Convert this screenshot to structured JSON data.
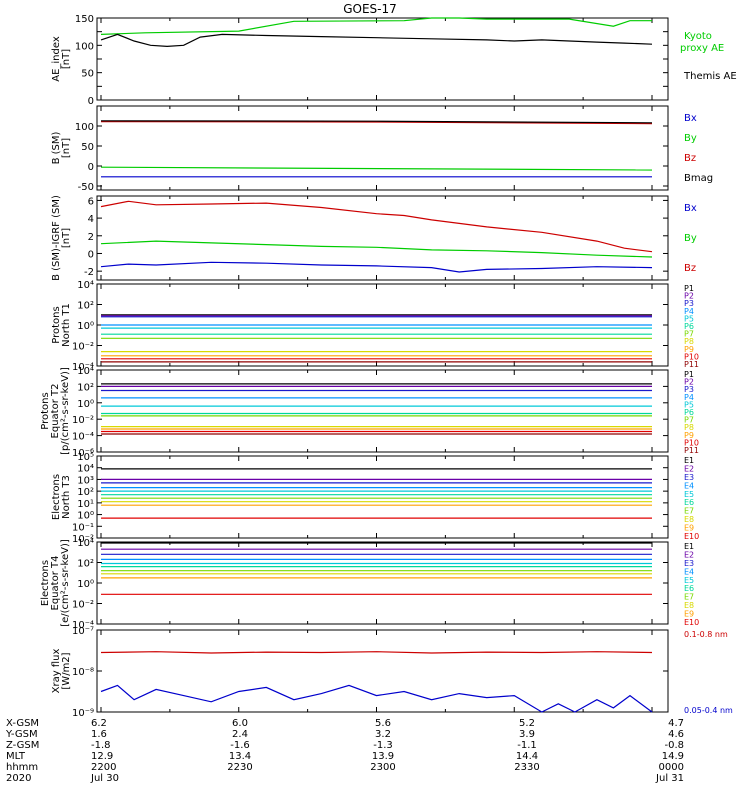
{
  "title": "GOES-17",
  "chart_data": [
    {
      "id": "ae",
      "type": "line",
      "ylabel": [
        "AE_index",
        "[nT]"
      ],
      "ylim": [
        0,
        150
      ],
      "log": false,
      "ticks": [
        "0",
        "50",
        "100",
        "150"
      ],
      "tick_values": [
        0,
        25,
        50,
        75,
        100,
        125,
        150
      ],
      "tick_labels": [
        "0",
        "",
        "50",
        "",
        "100",
        "",
        "150"
      ],
      "series": [
        {
          "name": "Kyoto",
          "name2": "proxy AE",
          "color": "#00cc00",
          "x": [
            0,
            0.08,
            0.25,
            0.35,
            0.55,
            0.6,
            0.65,
            0.7,
            0.85,
            0.93,
            0.96,
            1
          ],
          "y": [
            120,
            123,
            126,
            144,
            145,
            150,
            150,
            148,
            148,
            135,
            145,
            145
          ]
        },
        {
          "name": "Themis AE",
          "color": "#000000",
          "x": [
            0,
            0.03,
            0.06,
            0.09,
            0.12,
            0.15,
            0.18,
            0.22,
            0.3,
            0.4,
            0.5,
            0.6,
            0.7,
            0.75,
            0.8,
            0.85,
            0.9,
            0.95,
            1
          ],
          "y": [
            110,
            120,
            108,
            100,
            98,
            100,
            115,
            120,
            118,
            116,
            114,
            112,
            110,
            108,
            110,
            108,
            106,
            104,
            102
          ]
        }
      ]
    },
    {
      "id": "bsm",
      "type": "line",
      "ylabel": [
        "B (SM)",
        "[nT]"
      ],
      "ylim": [
        -60,
        150
      ],
      "log": false,
      "tick_values": [
        -50,
        0,
        50,
        100
      ],
      "tick_labels": [
        "-50",
        "0",
        "50",
        "100"
      ],
      "series": [
        {
          "name": "Bx",
          "color": "#0000cc",
          "x": [
            0,
            1
          ],
          "y": [
            -27,
            -27
          ]
        },
        {
          "name": "By",
          "color": "#00cc00",
          "x": [
            0,
            1
          ],
          "y": [
            -3,
            -10
          ]
        },
        {
          "name": "Bz",
          "color": "#cc0000",
          "x": [
            0,
            0.5,
            1
          ],
          "y": [
            111,
            110,
            106
          ]
        },
        {
          "name": "Bmag",
          "color": "#000000",
          "x": [
            0,
            0.5,
            1
          ],
          "y": [
            113,
            112,
            108
          ]
        }
      ]
    },
    {
      "id": "bigrf",
      "type": "line",
      "ylabel": [
        "B (SM)-IGRF (SM)",
        "[nT]"
      ],
      "ylim": [
        -3,
        6.5
      ],
      "log": false,
      "tick_values": [
        -2,
        0,
        2,
        4,
        6
      ],
      "tick_labels": [
        "-2",
        "0",
        "2",
        "4",
        "6"
      ],
      "series": [
        {
          "name": "Bx",
          "color": "#0000cc",
          "x": [
            0,
            0.05,
            0.1,
            0.2,
            0.3,
            0.4,
            0.5,
            0.6,
            0.65,
            0.7,
            0.8,
            0.9,
            1
          ],
          "y": [
            -1.5,
            -1.2,
            -1.3,
            -1.0,
            -1.1,
            -1.3,
            -1.4,
            -1.6,
            -2.1,
            -1.8,
            -1.7,
            -1.5,
            -1.6
          ]
        },
        {
          "name": "By",
          "color": "#00cc00",
          "x": [
            0,
            0.1,
            0.2,
            0.3,
            0.4,
            0.5,
            0.6,
            0.7,
            0.8,
            0.9,
            1
          ],
          "y": [
            1.1,
            1.4,
            1.2,
            1.0,
            0.8,
            0.7,
            0.4,
            0.3,
            0.1,
            -0.2,
            -0.4
          ]
        },
        {
          "name": "Bz",
          "color": "#cc0000",
          "x": [
            0,
            0.05,
            0.1,
            0.2,
            0.3,
            0.4,
            0.5,
            0.55,
            0.6,
            0.7,
            0.8,
            0.9,
            0.95,
            1
          ],
          "y": [
            5.3,
            5.9,
            5.5,
            5.6,
            5.7,
            5.2,
            4.5,
            4.3,
            3.8,
            3.0,
            2.4,
            1.4,
            0.6,
            0.2
          ]
        }
      ]
    },
    {
      "id": "pn1",
      "type": "line",
      "ylabel": [
        "Protons",
        "North T1"
      ],
      "ylim": [
        -4,
        4
      ],
      "log": true,
      "tick_values": [
        -4,
        -2,
        0,
        2,
        4
      ],
      "series": [
        {
          "name": "P1",
          "color": "#000000",
          "y": [
            1.0
          ]
        },
        {
          "name": "P2",
          "color": "#6a00a8",
          "y": [
            0.9
          ]
        },
        {
          "name": "P3",
          "color": "#1a1acc",
          "y": [
            0.8
          ]
        },
        {
          "name": "P4",
          "color": "#0090ff",
          "y": [
            0.0
          ]
        },
        {
          "name": "P5",
          "color": "#00c8d8",
          "y": [
            -0.3
          ]
        },
        {
          "name": "P6",
          "color": "#00d89b",
          "y": [
            -0.9
          ]
        },
        {
          "name": "P7",
          "color": "#7ad800",
          "y": [
            -1.3
          ]
        },
        {
          "name": "P8",
          "color": "#d8d800",
          "y": [
            -2.6
          ]
        },
        {
          "name": "P9",
          "color": "#ffa000",
          "y": [
            -3.0
          ]
        },
        {
          "name": "P10",
          "color": "#e00000",
          "y": [
            -3.3
          ]
        },
        {
          "name": "P11",
          "color": "#900000",
          "y": [
            -3.6
          ]
        }
      ]
    },
    {
      "id": "pe2",
      "type": "line",
      "ylabel": [
        "Protons",
        "Equator T2",
        "[p/(cm²-s-sr-keV)]"
      ],
      "ylim": [
        -6,
        4
      ],
      "log": true,
      "tick_values": [
        -6,
        -4,
        -2,
        0,
        2,
        4
      ],
      "series": [
        {
          "name": "P1",
          "color": "#000000",
          "y": [
            2.3
          ]
        },
        {
          "name": "P2",
          "color": "#6a00a8",
          "y": [
            2.0
          ]
        },
        {
          "name": "P3",
          "color": "#1a1acc",
          "y": [
            1.5
          ]
        },
        {
          "name": "P4",
          "color": "#0090ff",
          "y": [
            0.6
          ]
        },
        {
          "name": "P5",
          "color": "#00c8d8",
          "y": [
            -0.4
          ]
        },
        {
          "name": "P6",
          "color": "#00d89b",
          "y": [
            -1.3
          ]
        },
        {
          "name": "P7",
          "color": "#7ad800",
          "y": [
            -1.6
          ]
        },
        {
          "name": "P8",
          "color": "#d8d800",
          "y": [
            -2.9
          ]
        },
        {
          "name": "P9",
          "color": "#ffa000",
          "y": [
            -3.2
          ]
        },
        {
          "name": "P10",
          "color": "#e00000",
          "y": [
            -3.5
          ]
        },
        {
          "name": "P11",
          "color": "#900000",
          "y": [
            -3.8
          ]
        }
      ]
    },
    {
      "id": "en3",
      "type": "line",
      "ylabel": [
        "Electrons",
        "North T3"
      ],
      "ylim": [
        -2,
        5
      ],
      "log": true,
      "tick_values": [
        -2,
        -1,
        0,
        1,
        2,
        3,
        4,
        5
      ],
      "series": [
        {
          "name": "E1",
          "color": "#000000",
          "y": [
            3.9
          ]
        },
        {
          "name": "E2",
          "color": "#6a00a8",
          "y": [
            3.0
          ]
        },
        {
          "name": "E3",
          "color": "#1a1acc",
          "y": [
            2.7
          ]
        },
        {
          "name": "E4",
          "color": "#0090ff",
          "y": [
            2.3
          ]
        },
        {
          "name": "E5",
          "color": "#00c8d8",
          "y": [
            2.0
          ]
        },
        {
          "name": "E6",
          "color": "#00d89b",
          "y": [
            1.7
          ]
        },
        {
          "name": "E7",
          "color": "#7ad800",
          "y": [
            1.4
          ]
        },
        {
          "name": "E8",
          "color": "#d8d800",
          "y": [
            1.1
          ]
        },
        {
          "name": "E9",
          "color": "#ffa000",
          "y": [
            0.8
          ]
        },
        {
          "name": "E10",
          "color": "#e00000",
          "y": [
            -0.3
          ]
        }
      ]
    },
    {
      "id": "ee4",
      "type": "line",
      "ylabel": [
        "Electrons",
        "Equator T4",
        "[e/(cm²-s-sr-keV)]"
      ],
      "ylim": [
        -4,
        4
      ],
      "log": true,
      "tick_values": [
        -4,
        -2,
        0,
        2,
        4
      ],
      "series": [
        {
          "name": "E1",
          "color": "#000000",
          "y": [
            3.9
          ]
        },
        {
          "name": "E2",
          "color": "#6a00a8",
          "y": [
            3.3
          ]
        },
        {
          "name": "E3",
          "color": "#1a1acc",
          "y": [
            2.8
          ]
        },
        {
          "name": "E4",
          "color": "#0090ff",
          "y": [
            2.3
          ]
        },
        {
          "name": "E5",
          "color": "#00c8d8",
          "y": [
            1.9
          ]
        },
        {
          "name": "E6",
          "color": "#00d89b",
          "y": [
            1.6
          ]
        },
        {
          "name": "E7",
          "color": "#7ad800",
          "y": [
            1.2
          ]
        },
        {
          "name": "E8",
          "color": "#d8d800",
          "y": [
            0.9
          ]
        },
        {
          "name": "E9",
          "color": "#ffa000",
          "y": [
            0.5
          ]
        },
        {
          "name": "E10",
          "color": "#e00000",
          "y": [
            -1.1
          ]
        }
      ]
    },
    {
      "id": "xray",
      "type": "line",
      "ylabel": [
        "Xray flux",
        "[W/m2]"
      ],
      "ylim": [
        -9,
        -7
      ],
      "log": true,
      "tick_values": [
        -9,
        -8,
        -7
      ],
      "series": [
        {
          "name": "0.1-0.8 nm",
          "color": "#cc0000",
          "x": [
            0,
            0.1,
            0.2,
            0.3,
            0.4,
            0.5,
            0.6,
            0.7,
            0.8,
            0.9,
            1
          ],
          "y": [
            -7.55,
            -7.53,
            -7.56,
            -7.54,
            -7.55,
            -7.53,
            -7.56,
            -7.54,
            -7.55,
            -7.53,
            -7.55
          ]
        },
        {
          "name": "0.05-0.4 nm",
          "color": "#0000cc",
          "x": [
            0,
            0.03,
            0.06,
            0.1,
            0.15,
            0.2,
            0.25,
            0.3,
            0.35,
            0.4,
            0.45,
            0.5,
            0.55,
            0.6,
            0.65,
            0.7,
            0.75,
            0.8,
            0.83,
            0.86,
            0.9,
            0.93,
            0.96,
            1
          ],
          "y": [
            -8.5,
            -8.35,
            -8.7,
            -8.45,
            -8.6,
            -8.75,
            -8.5,
            -8.4,
            -8.7,
            -8.55,
            -8.35,
            -8.6,
            -8.5,
            -8.7,
            -8.55,
            -8.65,
            -8.6,
            -9.0,
            -8.8,
            -9.0,
            -8.7,
            -8.9,
            -8.6,
            -9.0
          ]
        }
      ]
    }
  ],
  "tick_labels_log": {
    "pn1": [
      "10⁻⁴",
      "10⁻²",
      "10⁰",
      "10²",
      "10⁴"
    ],
    "pe2": [
      "10⁻⁶",
      "10⁻⁴",
      "10⁻²",
      "10⁰",
      "10²",
      "10⁴"
    ],
    "en3": [
      "10⁻²",
      "10⁻¹",
      "10⁰",
      "10¹",
      "10²",
      "10³",
      "10⁴",
      "10⁵"
    ],
    "ee4": [
      "10⁻⁴",
      "10⁻²",
      "10⁰",
      "10²",
      "10⁴"
    ],
    "xray": [
      "10⁻⁹",
      "10⁻⁸",
      "10⁻⁷"
    ]
  },
  "footer": {
    "row_labels": [
      "X-GSM",
      "Y-GSM",
      "Z-GSM",
      "MLT",
      "hhmm",
      "2020"
    ],
    "columns": [
      {
        "values": [
          "6.2",
          "1.6",
          "-1.8",
          "12.9",
          "2200",
          "Jul 30"
        ]
      },
      {
        "values": [
          "6.0",
          "2.4",
          "-1.6",
          "13.4",
          "2230",
          ""
        ]
      },
      {
        "values": [
          "5.6",
          "3.2",
          "-1.3",
          "13.9",
          "2300",
          ""
        ]
      },
      {
        "values": [
          "5.2",
          "3.9",
          "-1.1",
          "14.4",
          "2330",
          ""
        ]
      },
      {
        "values": [
          "4.7",
          "4.6",
          "-0.8",
          "14.9",
          "0000",
          "Jul 31"
        ]
      }
    ]
  }
}
